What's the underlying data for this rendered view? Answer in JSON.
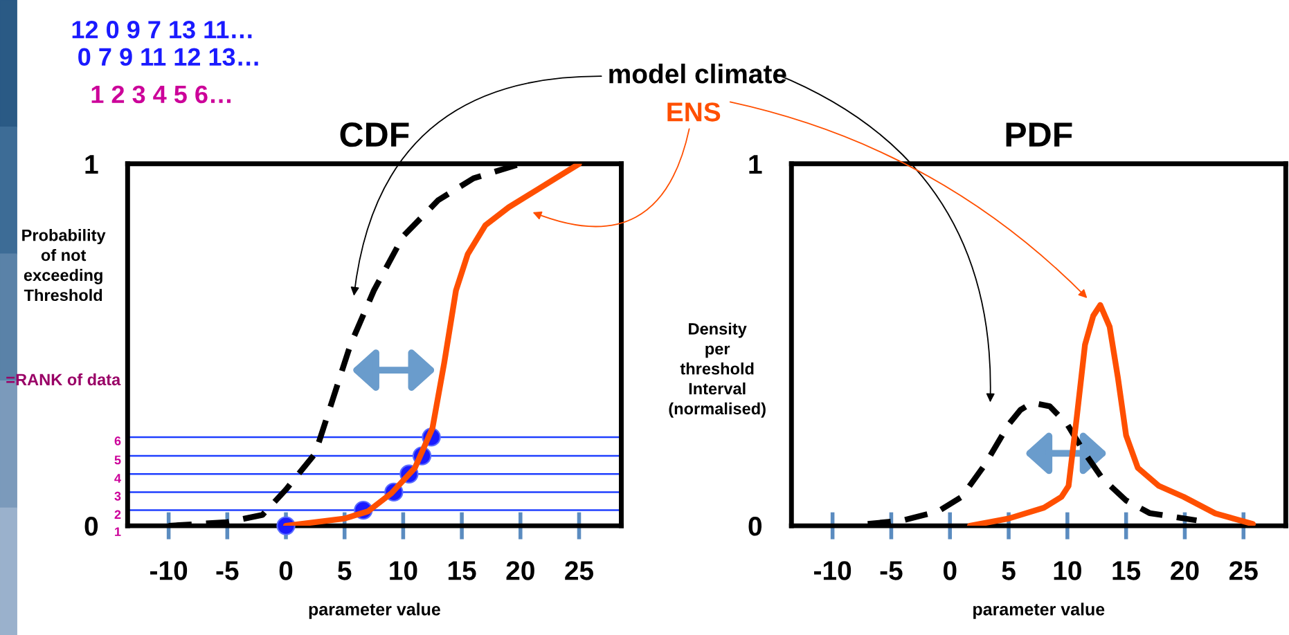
{
  "chart_data": [
    {
      "type": "line",
      "title": "CDF",
      "xlabel": "parameter value",
      "ylabel": "Probability\nof not\nexceeding\nThreshold",
      "xlim": [
        -13.5,
        28.6
      ],
      "ylim": [
        0,
        1
      ],
      "xticks": [
        -10,
        -5,
        0,
        5,
        10,
        15,
        20,
        25
      ],
      "yticks": [
        0,
        1
      ],
      "grid": false,
      "legend": false,
      "series": [
        {
          "color": "#000000",
          "line_style": "dashed",
          "x": [
            -10,
            -5,
            -2,
            0,
            2.5,
            4,
            5.5,
            7.5,
            10,
            13,
            16,
            20
          ],
          "values": [
            0,
            0.01,
            0.03,
            0.1,
            0.2,
            0.35,
            0.5,
            0.65,
            0.8,
            0.9,
            0.96,
            1.0
          ]
        },
        {
          "color": "#ff4f00",
          "line_style": "solid",
          "x": [
            0,
            5,
            7,
            9,
            11,
            12.5,
            13.5,
            14.5,
            15.5,
            17,
            19,
            21.5,
            25
          ],
          "values": [
            0,
            0.02,
            0.04,
            0.09,
            0.16,
            0.27,
            0.45,
            0.65,
            0.75,
            0.83,
            0.88,
            0.93,
            1.0
          ]
        },
        {
          "type": "scatter",
          "color": "#1a1aff",
          "marker": "circle",
          "x": [
            0,
            6.6,
            9.2,
            10.5,
            11.6,
            12.4
          ],
          "values": [
            0,
            0.043,
            0.093,
            0.143,
            0.193,
            0.245
          ]
        }
      ],
      "ref_lines": [
        {
          "axis": "y",
          "value": 0.043,
          "color": "#1f3fff"
        },
        {
          "axis": "y",
          "value": 0.093,
          "color": "#1f3fff"
        },
        {
          "axis": "y",
          "value": 0.143,
          "color": "#1f3fff"
        },
        {
          "axis": "y",
          "value": 0.193,
          "color": "#1f3fff"
        },
        {
          "axis": "y",
          "value": 0.245,
          "color": "#1f3fff"
        }
      ],
      "annotations": [
        "12 0 9 7 13 11…",
        "0 7 9 11 12 13…",
        "1 2 3 4 5 6…",
        "=RANK of data",
        "model climate",
        "ENS",
        "1",
        "2",
        "3",
        "4",
        "5",
        "6"
      ]
    },
    {
      "type": "line",
      "title": "PDF",
      "xlabel": "parameter value",
      "ylabel": "Density\nper\nthreshold\nInterval\n(normalised)",
      "xlim": [
        -13.5,
        28.6
      ],
      "ylim": [
        0,
        1
      ],
      "xticks": [
        -10,
        -5,
        0,
        5,
        10,
        15,
        20,
        25
      ],
      "yticks": [
        0,
        1
      ],
      "grid": false,
      "legend": false,
      "series": [
        {
          "color": "#000000",
          "line_style": "dashed",
          "x": [
            -7,
            -4,
            -1,
            1,
            3,
            5,
            6,
            7,
            8.5,
            10,
            11.5,
            13,
            15,
            17,
            21
          ],
          "values": [
            0.005,
            0.015,
            0.04,
            0.08,
            0.17,
            0.28,
            0.32,
            0.34,
            0.33,
            0.28,
            0.2,
            0.13,
            0.07,
            0.035,
            0.015
          ]
        },
        {
          "color": "#ff4f00",
          "line_style": "solid",
          "x": [
            1.7,
            5,
            8,
            9.5,
            10.1,
            10.8,
            11.5,
            12.2,
            12.8,
            13.6,
            14.3,
            15,
            16,
            17.8,
            19.9,
            22.6,
            25.8
          ],
          "values": [
            0,
            0.02,
            0.05,
            0.08,
            0.11,
            0.3,
            0.5,
            0.58,
            0.61,
            0.55,
            0.41,
            0.25,
            0.16,
            0.11,
            0.08,
            0.034,
            0.005
          ]
        }
      ]
    }
  ]
}
